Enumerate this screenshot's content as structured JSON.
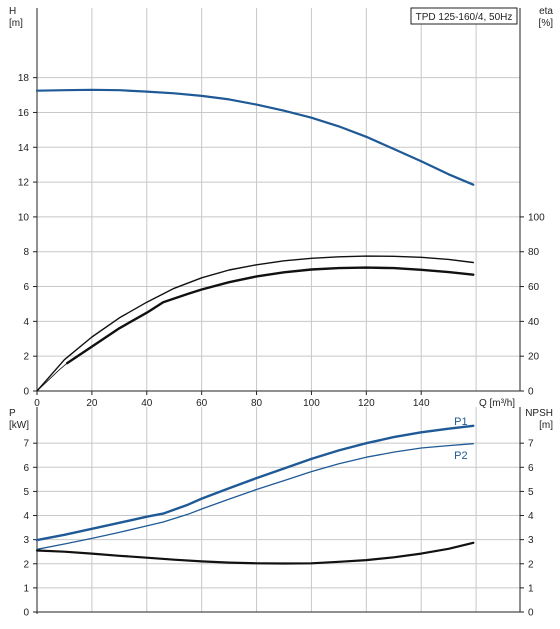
{
  "pump_label": "TPD 125-160/4, 50Hz",
  "colors": {
    "blue": "#1f5a96",
    "black": "#111111",
    "grid": "#c8c8c8"
  },
  "chart_data": [
    {
      "id": "head_efficiency",
      "type": "line",
      "title": "TPD 125-160/4, 50Hz",
      "xlabel": "Q [m³/h]",
      "ylabel_left": [
        "H",
        "[m]"
      ],
      "ylabel_right": [
        "eta",
        "[%]"
      ],
      "xlim": [
        0,
        176
      ],
      "ylim_left": [
        0,
        22
      ],
      "ylim_right": [
        0,
        220
      ],
      "x_ticks": [
        0,
        20,
        40,
        60,
        80,
        100,
        120,
        140
      ],
      "y_ticks_left": [
        0,
        2,
        4,
        6,
        8,
        10,
        12,
        14,
        16,
        18
      ],
      "y_ticks_right": [
        0,
        20,
        40,
        60,
        80,
        100
      ],
      "grid": true,
      "series": [
        {
          "key": "H",
          "axis": "left",
          "color": "#1f5a96",
          "width": 2.2,
          "points": [
            [
              0,
              17.25
            ],
            [
              10,
              17.28
            ],
            [
              20,
              17.3
            ],
            [
              30,
              17.28
            ],
            [
              40,
              17.2
            ],
            [
              50,
              17.1
            ],
            [
              60,
              16.95
            ],
            [
              70,
              16.75
            ],
            [
              80,
              16.45
            ],
            [
              90,
              16.1
            ],
            [
              100,
              15.7
            ],
            [
              110,
              15.2
            ],
            [
              120,
              14.6
            ],
            [
              130,
              13.9
            ],
            [
              140,
              13.2
            ],
            [
              150,
              12.45
            ],
            [
              159,
              11.85
            ]
          ]
        },
        {
          "key": "eta_upper",
          "axis": "right",
          "color": "#111111",
          "width": 1.4,
          "points": [
            [
              0,
              0
            ],
            [
              10,
              18
            ],
            [
              20,
              31
            ],
            [
              30,
              42
            ],
            [
              40,
              51
            ],
            [
              50,
              59
            ],
            [
              60,
              65
            ],
            [
              70,
              69.5
            ],
            [
              80,
              72.5
            ],
            [
              90,
              74.8
            ],
            [
              100,
              76.2
            ],
            [
              110,
              77.1
            ],
            [
              120,
              77.5
            ],
            [
              130,
              77.4
            ],
            [
              140,
              76.8
            ],
            [
              150,
              75.6
            ],
            [
              159,
              73.8
            ]
          ]
        },
        {
          "key": "eta_lower",
          "axis": "right",
          "color": "#111111",
          "width": 2.4,
          "points": [
            [
              11,
              16
            ],
            [
              20,
              25.5
            ],
            [
              30,
              36
            ],
            [
              40,
              45
            ],
            [
              46,
              51
            ],
            [
              55,
              55.8
            ],
            [
              60,
              58.3
            ],
            [
              70,
              62.5
            ],
            [
              80,
              65.8
            ],
            [
              90,
              68.2
            ],
            [
              100,
              69.8
            ],
            [
              110,
              70.6
            ],
            [
              120,
              70.9
            ],
            [
              130,
              70.6
            ],
            [
              140,
              69.6
            ],
            [
              150,
              68.3
            ],
            [
              159,
              66.8
            ]
          ]
        },
        {
          "key": "eta_init",
          "axis": "right",
          "color": "#111111",
          "width": 0.8,
          "points": [
            [
              0,
              0
            ],
            [
              4,
              6
            ],
            [
              8,
              12
            ],
            [
              11,
              16
            ]
          ]
        }
      ]
    },
    {
      "id": "power_npsh",
      "type": "line",
      "xlabel": "",
      "ylabel_left": [
        "P",
        "[kW]"
      ],
      "ylabel_right": [
        "NPSH",
        "[m]"
      ],
      "xlim": [
        0,
        176
      ],
      "ylim_left": [
        0,
        8.5
      ],
      "ylim_right": [
        0,
        8.5
      ],
      "y_ticks_left": [
        0,
        1,
        2,
        3,
        4,
        5,
        6,
        7
      ],
      "y_ticks_right": [
        0,
        1,
        2,
        3,
        4,
        5,
        6,
        7
      ],
      "grid": true,
      "series": [
        {
          "key": "P1",
          "name": "P1",
          "axis": "left",
          "color": "#1f5a96",
          "width": 2.4,
          "points": [
            [
              0,
              2.98
            ],
            [
              10,
              3.2
            ],
            [
              20,
              3.45
            ],
            [
              30,
              3.7
            ],
            [
              40,
              3.95
            ],
            [
              46,
              4.08
            ],
            [
              55,
              4.45
            ],
            [
              60,
              4.7
            ],
            [
              70,
              5.13
            ],
            [
              80,
              5.55
            ],
            [
              90,
              5.95
            ],
            [
              100,
              6.35
            ],
            [
              110,
              6.7
            ],
            [
              120,
              7.0
            ],
            [
              130,
              7.25
            ],
            [
              140,
              7.45
            ],
            [
              150,
              7.6
            ],
            [
              159,
              7.72
            ]
          ]
        },
        {
          "key": "P2",
          "name": "P2",
          "axis": "left",
          "color": "#1f5a96",
          "width": 1.3,
          "points": [
            [
              0,
              2.6
            ],
            [
              10,
              2.82
            ],
            [
              20,
              3.05
            ],
            [
              30,
              3.3
            ],
            [
              40,
              3.57
            ],
            [
              46,
              3.73
            ],
            [
              55,
              4.05
            ],
            [
              60,
              4.27
            ],
            [
              70,
              4.68
            ],
            [
              80,
              5.08
            ],
            [
              90,
              5.45
            ],
            [
              100,
              5.82
            ],
            [
              110,
              6.15
            ],
            [
              120,
              6.42
            ],
            [
              130,
              6.63
            ],
            [
              140,
              6.8
            ],
            [
              150,
              6.9
            ],
            [
              159,
              6.98
            ]
          ]
        },
        {
          "key": "NPSH",
          "axis": "right",
          "color": "#111111",
          "width": 2.2,
          "points": [
            [
              0,
              2.55
            ],
            [
              10,
              2.5
            ],
            [
              20,
              2.42
            ],
            [
              30,
              2.33
            ],
            [
              40,
              2.25
            ],
            [
              50,
              2.17
            ],
            [
              60,
              2.1
            ],
            [
              70,
              2.05
            ],
            [
              80,
              2.02
            ],
            [
              90,
              2.01
            ],
            [
              100,
              2.02
            ],
            [
              110,
              2.08
            ],
            [
              120,
              2.15
            ],
            [
              130,
              2.27
            ],
            [
              140,
              2.42
            ],
            [
              150,
              2.62
            ],
            [
              159,
              2.87
            ]
          ]
        }
      ],
      "labels": [
        {
          "text": "P1",
          "x": 152,
          "y": 7.92
        },
        {
          "text": "P2",
          "x": 152,
          "y": 6.5
        }
      ]
    }
  ]
}
